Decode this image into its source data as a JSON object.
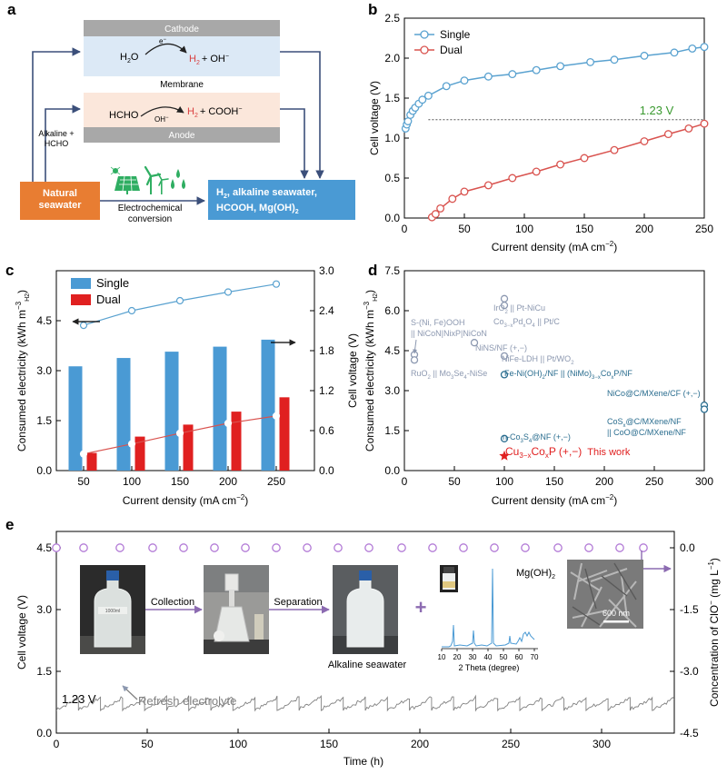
{
  "colors": {
    "blue": "#4a9ad4",
    "red": "#d94040",
    "orange": "#e87d32",
    "cathode_fill": "#dce9f6",
    "anode_fill": "#fbe7db",
    "electrode_gray": "#a8a8a8",
    "line_blue": "#5aa2d0",
    "line_red": "#d9534f",
    "green_label": "#3a9a2f",
    "purple": "#b27ad6",
    "trace": "#808080",
    "navy_arrow": "#3b4f7a",
    "icon_green": "#2fae62"
  },
  "panel_labels": [
    "a",
    "b",
    "c",
    "d",
    "e"
  ],
  "panel_a": {
    "cathode_label": "Cathode",
    "anode_label": "Anode",
    "membrane_label": "Membrane",
    "cathode_h2o": "H",
    "cathode_h2o_sub": "2",
    "cathode_h2o_o": "O",
    "electron": "e",
    "electron_sup": "−",
    "h2": "H",
    "h2_sub": "2",
    "plus_oh": "+ OH",
    "oh_sup": "−",
    "hcho": "HCHO",
    "oh_arrow": "OH",
    "oh_arrow_sup": "−",
    "plus_cooh": "+ COOH",
    "cooh_sup": "−",
    "alkaline_1": "Alkaline +",
    "alkaline_2": "HCHO",
    "natural_1": "Natural",
    "natural_2": "seawater",
    "electrochem_1": "Electrochemical",
    "electrochem_2": "conversion",
    "products_1a": "H",
    "products_1b": "2",
    "products_1c": ", alkaline seawater,",
    "products_2a": "HCOOH, Mg(OH)",
    "products_2b": "2"
  },
  "chart_data": [
    {
      "panel": "b",
      "type": "line",
      "xlabel": "Current density (mA cm",
      "xlabel_sup": "−2",
      "xlabel_end": ")",
      "ylabel": "Cell voltage (V)",
      "xlim": [
        0,
        250
      ],
      "ylim": [
        0,
        2.5
      ],
      "xticks": [
        0,
        50,
        100,
        150,
        200,
        250
      ],
      "yticks": [
        0.0,
        0.5,
        1.0,
        1.5,
        2.0,
        2.5
      ],
      "ytick_labels": [
        "0.0",
        "0.5",
        "1.0",
        "1.5",
        "2.0",
        "2.5"
      ],
      "reference_line": {
        "y": 1.23,
        "label": "1.23 V"
      },
      "legend": "top-left",
      "series": [
        {
          "name": "Single",
          "x": [
            0,
            1,
            2,
            3,
            4,
            5,
            7,
            9,
            12,
            15,
            20,
            35,
            50,
            70,
            90,
            110,
            130,
            155,
            175,
            200,
            225,
            240,
            250
          ],
          "values": [
            1.07,
            1.12,
            1.17,
            1.21,
            1.25,
            1.29,
            1.34,
            1.38,
            1.43,
            1.48,
            1.53,
            1.65,
            1.72,
            1.77,
            1.8,
            1.85,
            1.9,
            1.95,
            1.98,
            2.03,
            2.07,
            2.12,
            2.14
          ],
          "markers_x": [
            1,
            2,
            3,
            5,
            7,
            9,
            12,
            15,
            20,
            35,
            50,
            70,
            90,
            110,
            130,
            155,
            175,
            200,
            225,
            240,
            250
          ]
        },
        {
          "name": "Dual",
          "x": [
            23,
            26,
            30,
            35,
            40,
            50,
            70,
            90,
            110,
            130,
            150,
            175,
            200,
            220,
            237,
            250
          ],
          "values": [
            0.01,
            0.05,
            0.12,
            0.18,
            0.24,
            0.33,
            0.41,
            0.5,
            0.58,
            0.67,
            0.75,
            0.85,
            0.96,
            1.05,
            1.12,
            1.18
          ],
          "markers_x": [
            23,
            26,
            30,
            40,
            50,
            70,
            90,
            110,
            130,
            150,
            175,
            200,
            220,
            237,
            250
          ]
        }
      ]
    },
    {
      "panel": "c",
      "type": "bar",
      "categories": [
        "50",
        "100",
        "150",
        "200",
        "250"
      ],
      "xlabel": "Current density (mA cm",
      "xlabel_sup": "−2",
      "xlabel_end": ")",
      "ylabel_left": "Consumed electricity (kWh m",
      "ylabel_left_sup": "−3",
      "ylabel_left_sub": "H2",
      "ylabel_left_end": ")",
      "ylabel_right": "Cell voltage (V)",
      "ylim_left": [
        0,
        6.0
      ],
      "ylim_right": [
        0,
        3.0
      ],
      "yticks_left": [
        "0.0",
        "1.5",
        "3.0",
        "4.5"
      ],
      "yticks_right": [
        "0.0",
        "0.6",
        "1.2",
        "1.8",
        "2.4",
        "3.0"
      ],
      "legend": "top-left",
      "series": [
        {
          "name": "Single",
          "values": [
            3.13,
            3.38,
            3.57,
            3.72,
            3.93
          ],
          "voltage": [
            2.18,
            2.4,
            2.55,
            2.68,
            2.8
          ]
        },
        {
          "name": "Dual",
          "values": [
            0.53,
            1.02,
            1.38,
            1.77,
            2.2
          ],
          "voltage": [
            0.25,
            0.4,
            0.56,
            0.71,
            0.82
          ]
        }
      ]
    },
    {
      "panel": "d",
      "type": "scatter",
      "xlabel": "Current density (mA cm",
      "xlabel_sup": "−2",
      "xlabel_end": ")",
      "ylabel": "Consumed electricity (kWh m",
      "ylabel_sup": "−3",
      "ylabel_sub": "H2",
      "ylabel_end": ")",
      "xlim": [
        0,
        300
      ],
      "ylim": [
        0,
        7.5
      ],
      "xticks": [
        "0",
        "50",
        "100",
        "150",
        "200",
        "250",
        "300"
      ],
      "yticks": [
        "0.0",
        "1.5",
        "3.0",
        "4.5",
        "6.0",
        "7.5"
      ],
      "points": [
        {
          "x": 10,
          "y": 4.35
        },
        {
          "x": 10,
          "y": 4.15
        },
        {
          "x": 100,
          "y": 6.45
        },
        {
          "x": 100,
          "y": 6.2
        },
        {
          "x": 70,
          "y": 4.8
        },
        {
          "x": 100,
          "y": 4.3
        },
        {
          "x": 100,
          "y": 3.6
        },
        {
          "x": 100,
          "y": 1.2
        },
        {
          "x": 300,
          "y": 2.45
        },
        {
          "x": 300,
          "y": 2.3
        }
      ],
      "this_work": {
        "x": 100,
        "y": 0.55
      },
      "labels": {
        "iro2": "IrO",
        "iro2_sub": "2",
        "iro2_end": " || Pt-NiCu",
        "copd_a": "Co",
        "copd_b": "3−x",
        "copd_c": "Pd",
        "copd_d": "x",
        "copd_e": "O",
        "copd_f": "4",
        "copd_g": " || Pt/C",
        "snife_1": "S-(Ni, Fe)OOH",
        "snife_2": "|| NiCoN|NixP|NiCoN",
        "nins": "NiNS/NF (+,−)",
        "nife_a": "NiFe-LDH || Pt/WO",
        "nife_b": "2",
        "ruo2_a": "RuO",
        "ruo2_b": "2",
        "ruo2_c": " || Mo",
        "ruo2_d": "3",
        "ruo2_e": "Se",
        "ruo2_f": "4",
        "ruo2_g": "-NiSe",
        "feni_a": "Fe-Ni(OH)",
        "feni_b": "2",
        "feni_c": "/NF || (NiMo)",
        "feni_d": "3−x",
        "feni_e": "Co",
        "feni_f": "x",
        "feni_g": "P/NF",
        "nico": "NiCo@C/MXene/CF (+,−)",
        "cos_a": "CoS",
        "cos_b": "x",
        "cos_c": "@C/MXene/NF",
        "coo": "|| CoO@C/MXene/NF",
        "nco_a": "n-Co",
        "nco_b": "3",
        "nco_c": "S",
        "nco_d": "4",
        "nco_e": "@NF (+,−)",
        "tw_a": "Cu",
        "tw_b": "3−x",
        "tw_c": "Co",
        "tw_d": "x",
        "tw_e": "P (+,−)",
        "tw_f": "This work"
      }
    },
    {
      "panel": "e",
      "type": "line",
      "xlabel": "Time (h)",
      "ylabel_left": "Cell voltage (V)",
      "ylabel_right": "Concentration of ClO",
      "ylabel_right_sup": "−",
      "ylabel_right_end": " (mg L",
      "ylabel_right_sup2": "−1",
      "ylabel_right_end2": ")",
      "xlim": [
        0,
        340
      ],
      "ylim_left": [
        0,
        4.5
      ],
      "ylim_right": [
        -4.5,
        0.0
      ],
      "xticks": [
        "0",
        "50",
        "100",
        "150",
        "200",
        "250",
        "300"
      ],
      "yticks_left": [
        "0.0",
        "1.5",
        "3.0",
        "4.5"
      ],
      "yticks_right": [
        "0.0",
        "-1.5",
        "-3.0",
        "-4.5"
      ],
      "voltage_range_V": [
        0.55,
        0.92
      ],
      "refresh_count": 28,
      "reference_label": "1.23 V",
      "annotation": "Refresh electrolyte",
      "clo_series": {
        "x": [
          0,
          15,
          35,
          53,
          70,
          87,
          104,
          121,
          138,
          155,
          172,
          190,
          207,
          224,
          241,
          258,
          276,
          293,
          310,
          323
        ],
        "values": [
          0,
          0,
          0,
          0,
          0,
          0,
          0,
          0,
          0,
          0,
          0,
          0,
          0,
          0,
          0,
          0,
          0,
          0,
          0,
          0
        ]
      }
    }
  ],
  "panel_e": {
    "collection": "Collection",
    "separation": "Separation",
    "alkaline_seawater": "Alkaline seawater",
    "plus": "+",
    "mgoh2_a": "Mg(OH)",
    "mgoh2_b": "2",
    "xrd_ticks": [
      "10",
      "20",
      "30",
      "40",
      "50",
      "60",
      "70"
    ],
    "xrd_xlabel": "2 Theta (degree)",
    "scale_bar": "600 nm",
    "bottle_label": "1000ml"
  }
}
